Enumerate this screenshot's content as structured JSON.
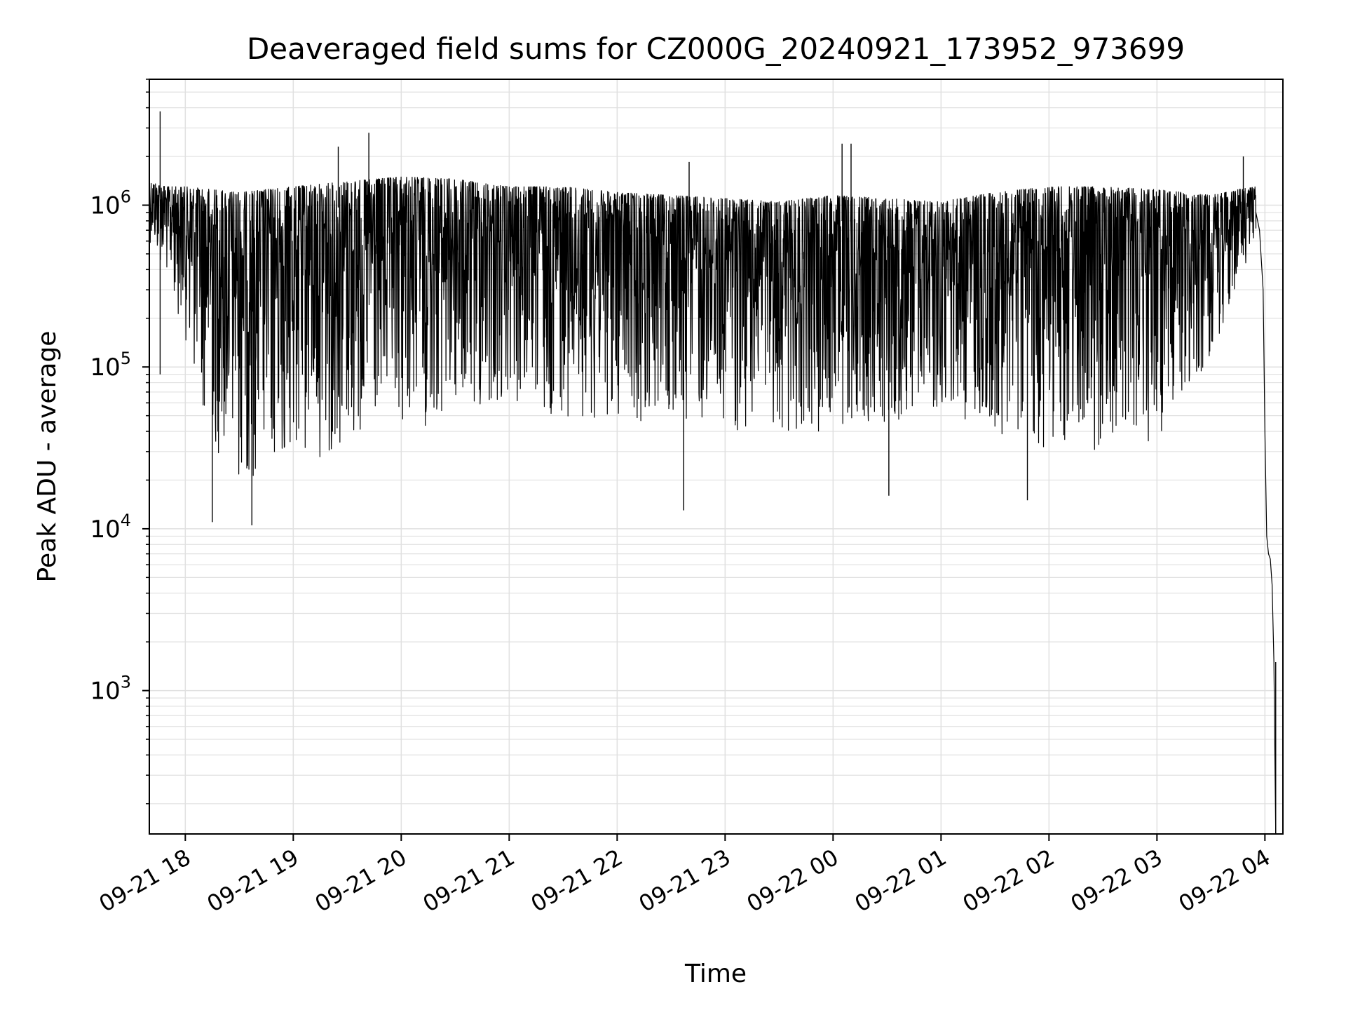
{
  "chart_data": {
    "type": "line",
    "title": "Deaveraged field sums for CZ000G_20240921_173952_973699",
    "xlabel": "Time",
    "ylabel": "Peak ADU - average",
    "x_axis": {
      "kind": "datetime",
      "range": [
        "2024-09-21 17:40",
        "2024-09-22 04:10"
      ],
      "ticks": [
        "09-21 18",
        "09-21 19",
        "09-21 20",
        "09-21 21",
        "09-21 22",
        "09-21 23",
        "09-22 00",
        "09-22 01",
        "09-22 02",
        "09-22 03",
        "09-22 04"
      ],
      "tick_times": [
        "2024-09-21 18:00",
        "2024-09-21 19:00",
        "2024-09-21 20:00",
        "2024-09-21 21:00",
        "2024-09-21 22:00",
        "2024-09-21 23:00",
        "2024-09-22 00:00",
        "2024-09-22 01:00",
        "2024-09-22 02:00",
        "2024-09-22 03:00",
        "2024-09-22 04:00"
      ],
      "tick_rotation_deg": 30
    },
    "y_axis": {
      "scale": "log",
      "range": [
        130,
        6000000
      ],
      "ticks": [
        {
          "base": "10",
          "exp": "3",
          "value": 1000
        },
        {
          "base": "10",
          "exp": "4",
          "value": 10000
        },
        {
          "base": "10",
          "exp": "5",
          "value": 100000
        },
        {
          "base": "10",
          "exp": "6",
          "value": 1000000
        }
      ]
    },
    "grid": true,
    "legend": "none",
    "series": [
      {
        "color": "#000000",
        "envelope": {
          "description_points": "upper and lower bounds of the dense noisy trace",
          "x": [
            "2024-09-21 17:40",
            "2024-09-21 17:50",
            "2024-09-21 18:00",
            "2024-09-21 18:15",
            "2024-09-21 18:30",
            "2024-09-21 18:45",
            "2024-09-21 19:00",
            "2024-09-21 19:30",
            "2024-09-21 20:00",
            "2024-09-21 20:30",
            "2024-09-21 21:00",
            "2024-09-21 21:30",
            "2024-09-21 22:00",
            "2024-09-21 22:30",
            "2024-09-21 23:00",
            "2024-09-21 23:30",
            "2024-09-22 00:00",
            "2024-09-22 00:30",
            "2024-09-22 01:00",
            "2024-09-22 01:30",
            "2024-09-22 02:00",
            "2024-09-22 02:30",
            "2024-09-22 03:00",
            "2024-09-22 03:15",
            "2024-09-22 03:30",
            "2024-09-22 03:45",
            "2024-09-22 03:55"
          ],
          "upper": [
            1400000,
            1300000,
            1300000,
            1250000,
            1200000,
            1250000,
            1300000,
            1400000,
            1500000,
            1450000,
            1300000,
            1300000,
            1200000,
            1150000,
            1100000,
            1050000,
            1150000,
            1100000,
            1050000,
            1200000,
            1300000,
            1300000,
            1250000,
            1200000,
            1150000,
            1250000,
            1300000
          ],
          "lower": [
            600000,
            350000,
            150000,
            30000,
            20000,
            20000,
            25000,
            30000,
            40000,
            45000,
            50000,
            50000,
            45000,
            45000,
            40000,
            40000,
            40000,
            45000,
            50000,
            40000,
            30000,
            30000,
            35000,
            60000,
            120000,
            300000,
            700000
          ]
        },
        "spikes": [
          {
            "x": "2024-09-21 17:46",
            "y": 3800000
          },
          {
            "x": "2024-09-21 17:46",
            "y": 90000
          },
          {
            "x": "2024-09-21 19:25",
            "y": 2300000
          },
          {
            "x": "2024-09-21 19:42",
            "y": 2800000
          },
          {
            "x": "2024-09-21 22:40",
            "y": 1850000
          },
          {
            "x": "2024-09-22 00:05",
            "y": 2400000
          },
          {
            "x": "2024-09-22 00:10",
            "y": 2400000
          },
          {
            "x": "2024-09-22 03:48",
            "y": 2000000
          },
          {
            "x": "2024-09-21 18:15",
            "y": 11000
          },
          {
            "x": "2024-09-21 18:37",
            "y": 10500
          },
          {
            "x": "2024-09-21 22:37",
            "y": 13000
          },
          {
            "x": "2024-09-22 01:48",
            "y": 15000
          },
          {
            "x": "2024-09-22 00:31",
            "y": 16000
          }
        ],
        "tail": {
          "x": [
            "2024-09-22 03:55",
            "2024-09-22 03:57",
            "2024-09-22 03:59",
            "2024-09-22 04:00",
            "2024-09-22 04:01",
            "2024-09-22 04:02",
            "2024-09-22 04:03",
            "2024-09-22 04:04",
            "2024-09-22 04:05",
            "2024-09-22 04:06"
          ],
          "y": [
            900000,
            700000,
            300000,
            40000,
            9000,
            7000,
            6500,
            4500,
            1500,
            130
          ]
        }
      }
    ]
  }
}
